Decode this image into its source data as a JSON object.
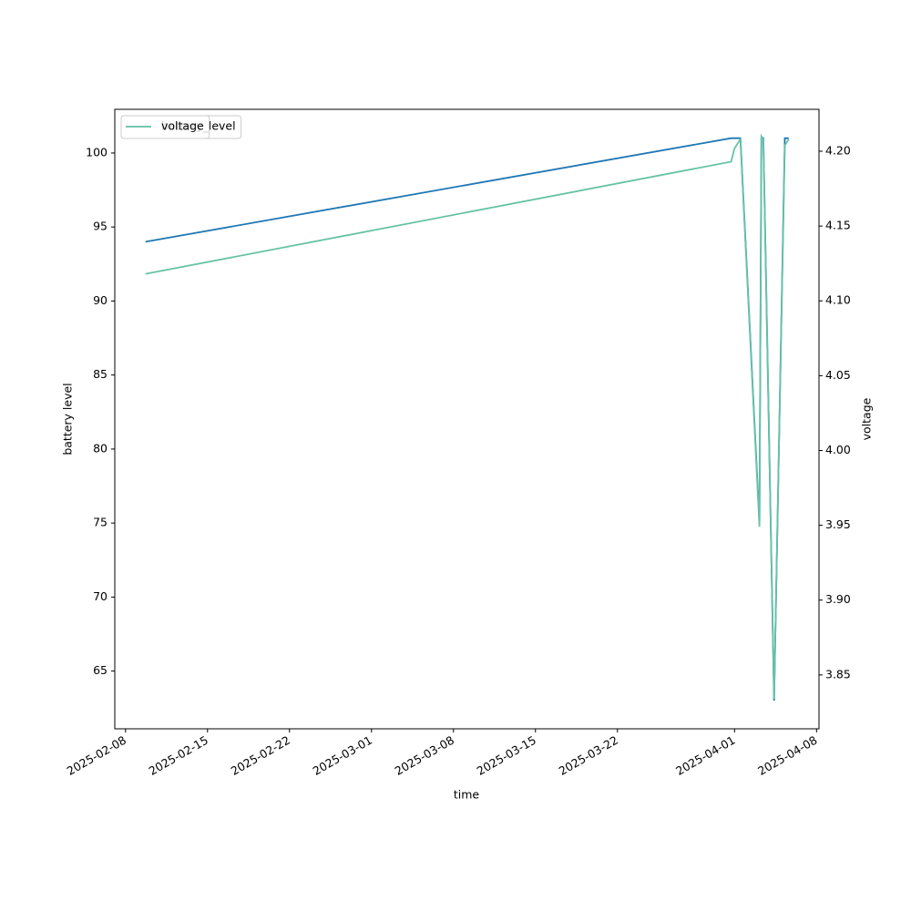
{
  "chart_data": {
    "type": "line",
    "x": [
      "2025-02-09 17:00",
      "2025-03-31 17:00",
      "2025-04-01 00:00",
      "2025-04-01 06:00",
      "2025-04-01 12:00",
      "2025-04-03 03:00",
      "2025-04-03 07:00",
      "2025-04-03 11:00",
      "2025-04-04 09:00",
      "2025-04-05 07:00",
      "2025-04-05 11:00",
      "2025-04-05 15:00"
    ],
    "series": [
      {
        "name": "battery_level",
        "color": "#1f77b4",
        "values": [
          94,
          101,
          101,
          101,
          101,
          75,
          101,
          101,
          63,
          101,
          101,
          101
        ]
      },
      {
        "name": "voltage",
        "color": "#66c2a5",
        "axis": "y2",
        "values": [
          4.118,
          4.193,
          4.202,
          4.205,
          4.208,
          3.949,
          4.21,
          4.208,
          3.834,
          4.204,
          4.206,
          4.208
        ]
      }
    ],
    "xlabel": "time",
    "ylabel": "battery level",
    "y2label": "voltage",
    "xlim": [
      "2025-02-07 02:00",
      "2025-04-08 05:00"
    ],
    "xticks": [
      "2025-02-08",
      "2025-02-15",
      "2025-02-22",
      "2025-03-01",
      "2025-03-08",
      "2025-03-15",
      "2025-03-22",
      "2025-04-01",
      "2025-04-08"
    ],
    "ylim": [
      61.1,
      102.95
    ],
    "yticks": [
      65,
      70,
      75,
      80,
      85,
      90,
      95,
      100
    ],
    "y2lim": [
      3.814,
      4.228
    ],
    "y2ticks": [
      3.85,
      {
        "value": 3.9,
        "label": "3.90"
      },
      3.95,
      {
        "value": 4.0,
        "label": "4.00"
      },
      4.05,
      {
        "value": 4.1,
        "label": "4.10"
      },
      4.15,
      {
        "value": 4.2,
        "label": "4.20"
      }
    ],
    "legend": "upper left"
  }
}
